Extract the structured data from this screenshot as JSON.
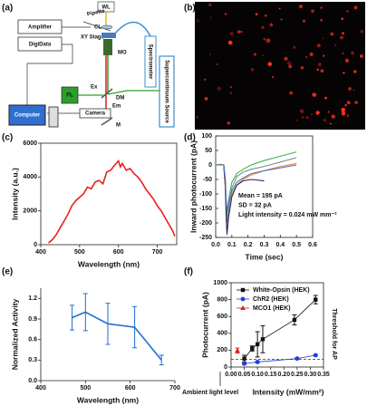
{
  "panel_labels": [
    "(a)",
    "(b)",
    "(c)",
    "(d)",
    "(e)",
    "(f)"
  ],
  "diagram": {
    "wl": "WL",
    "pipette": "Pipette",
    "cl": "CL",
    "xy_stage": "XY Stage",
    "amplifier": "Amplifier",
    "digidata": "DigiData",
    "mo": "MO",
    "spectrometer": "Spectrometer",
    "source": "Supercontinuum Source",
    "ex": "Ex",
    "dm": "DM",
    "fl": "FL",
    "em": "Em",
    "computer": "Computer",
    "camera": "Camera",
    "m": "M"
  },
  "chart_data": [
    {
      "type": "line",
      "xlabel": "Wavelength (nm)",
      "ylabel": "Intensity (a.u.)",
      "x": [
        420,
        430,
        440,
        450,
        460,
        470,
        480,
        490,
        500,
        510,
        520,
        530,
        540,
        550,
        560,
        570,
        580,
        590,
        600,
        605,
        610,
        620,
        630,
        640,
        650,
        660,
        670,
        680,
        690,
        700,
        710,
        720,
        730,
        740,
        745
      ],
      "series": [
        {
          "color": "#e8211b",
          "values": [
            100,
            300,
            600,
            1000,
            1400,
            1800,
            2300,
            2600,
            2800,
            3000,
            3400,
            3300,
            3700,
            3800,
            3600,
            4300,
            4400,
            4700,
            4950,
            4600,
            4800,
            4400,
            4500,
            4200,
            4000,
            3700,
            3300,
            3000,
            2700,
            2300,
            2000,
            1600,
            1200,
            800,
            500
          ]
        }
      ],
      "xlim": [
        400,
        750
      ],
      "ylim": [
        0,
        6000
      ],
      "xticks": [
        400,
        500,
        600,
        700
      ],
      "yticks": [
        0,
        2000,
        4000,
        6000
      ]
    },
    {
      "type": "line",
      "xlabel": "Time (sec)",
      "ylabel": "Inward photocurrent (pA)",
      "annotations": [
        "Mean = 195 pA",
        "SD = 32 pA",
        "Light intensity = 0.024 mW mm⁻²"
      ],
      "x": [
        0,
        0.03,
        0.05,
        0.06,
        0.065,
        0.07,
        0.08,
        0.1,
        0.13,
        0.17,
        0.22,
        0.3,
        0.4,
        0.5
      ],
      "series": [
        {
          "color": "#3cb44b",
          "values": [
            0,
            2,
            0,
            -80,
            -150,
            -175,
            -120,
            -60,
            -30,
            -15,
            0,
            15,
            30,
            45
          ]
        },
        {
          "color": "#f28c28",
          "values": [
            0,
            0,
            2,
            -90,
            -190,
            -230,
            -170,
            -100,
            -70,
            -50,
            -35,
            -20,
            -5,
            5
          ]
        },
        {
          "color": "#7f8c8d",
          "values": [
            0,
            0,
            0,
            -60,
            -150,
            -200,
            -150,
            -80,
            -40,
            -25,
            -15,
            -5,
            10,
            25
          ]
        },
        {
          "color": "#1f2a6b",
          "values": [
            0,
            0,
            0,
            -70,
            -170,
            -240,
            -180,
            -110,
            -70,
            -55,
            -50,
            -55,
            null,
            null
          ]
        },
        {
          "color": "#4a6fc2",
          "values": [
            0,
            0,
            0,
            -50,
            -120,
            -160,
            -130,
            -90,
            -60,
            -45,
            -30,
            -20,
            -10,
            0
          ]
        }
      ],
      "xlim": [
        0,
        0.6
      ],
      "ylim": [
        -250,
        100
      ],
      "xticks": [
        {
          "value": 0,
          "label": "0.0"
        },
        0.1,
        0.2,
        0.3,
        0.4,
        0.5,
        0.6
      ],
      "yticks": [
        100,
        50,
        0,
        -50,
        -100,
        -150,
        -200,
        -250
      ]
    },
    {
      "type": "line",
      "xlabel": "Wavelength (nm)",
      "ylabel": "Normalized Activity",
      "x": [
        470,
        500,
        550,
        610,
        670
      ],
      "series": [
        {
          "color": "#1f6fd1",
          "values": [
            0.92,
            1.0,
            0.83,
            0.78,
            0.3
          ],
          "errors": [
            0.18,
            0.27,
            0.3,
            0.3,
            0.07
          ]
        }
      ],
      "xlim": [
        400,
        700
      ],
      "ylim": [
        0,
        1.35
      ],
      "xticks": [
        400,
        500,
        600,
        700
      ],
      "yticks": [
        {
          "value": 0,
          "label": "0.0"
        },
        0.3,
        0.6,
        0.9,
        1.2
      ]
    },
    {
      "type": "line",
      "xlabel": "Intensity (mW/mm²)",
      "ylabel": "Photocurrent (pA)",
      "annotation": "Ambient light level",
      "threshold": {
        "value": 90,
        "label": "Threshold for AP"
      },
      "legend": "upper left",
      "series": [
        {
          "name": "White-Opsin (HEK)",
          "color": "#111111",
          "marker": "square",
          "x": [
            0.05,
            0.08,
            0.1,
            0.12,
            0.24,
            0.32
          ],
          "values": [
            100,
            220,
            270,
            330,
            560,
            800
          ],
          "errors": [
            40,
            30,
            150,
            160,
            60,
            50
          ]
        },
        {
          "name": "ChR2 (HEK)",
          "color": "#1f3fd6",
          "marker": "circle",
          "x": [
            0.05,
            0.1,
            0.25,
            0.32
          ],
          "values": [
            40,
            60,
            100,
            140
          ],
          "errors": [
            10,
            10,
            10,
            10
          ]
        },
        {
          "name": "MCO1 (HEK)",
          "color": "#d62020",
          "marker": "triangle",
          "x": [
            0.024
          ],
          "values": [
            195
          ],
          "errors": [
            30
          ]
        }
      ],
      "xlim": [
        0,
        0.35
      ],
      "ylim": [
        0,
        1000
      ],
      "xticks": [
        {
          "value": 0,
          "label": "0.00"
        },
        0.05,
        {
          "value": 0.1,
          "label": "0.10"
        },
        0.15,
        {
          "value": 0.2,
          "label": "0.20"
        },
        0.25,
        {
          "value": 0.3,
          "label": "0.30"
        },
        0.35
      ],
      "yticks": [
        0,
        200,
        400,
        600,
        800,
        1000
      ]
    }
  ]
}
